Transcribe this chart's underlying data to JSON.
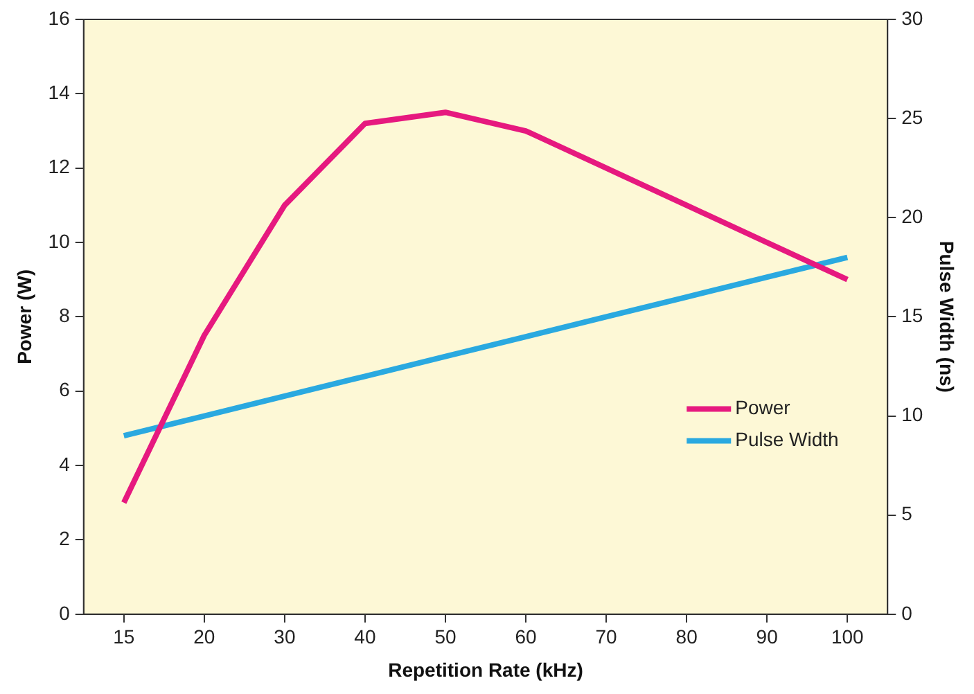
{
  "chart_data": {
    "type": "line",
    "xlabel": "Repetition Rate (kHz)",
    "ylabel": "Power (W)",
    "y2label": "Pulse Width (ns)",
    "categories": [
      "15",
      "20",
      "30",
      "40",
      "50",
      "60",
      "70",
      "80",
      "90",
      "100"
    ],
    "series": [
      {
        "name": "Power",
        "color": "#e6197f",
        "values": [
          3,
          7.5,
          11,
          13.2,
          13.5,
          13,
          12,
          11,
          10,
          9
        ]
      },
      {
        "name": "Pulse Width",
        "color": "#2aa9e0",
        "axis": "y2",
        "values": [
          9,
          10,
          11,
          12,
          13,
          14,
          15,
          16,
          17,
          18
        ]
      }
    ],
    "ylim": [
      0,
      16
    ],
    "yticks": [
      0,
      2,
      4,
      6,
      8,
      10,
      12,
      14,
      16
    ],
    "y2lim": [
      0,
      30
    ],
    "y2ticks": [
      0,
      5,
      10,
      15,
      20,
      25,
      30
    ],
    "grid": false,
    "legend": "right",
    "marker": "none",
    "line_style": "solid"
  }
}
